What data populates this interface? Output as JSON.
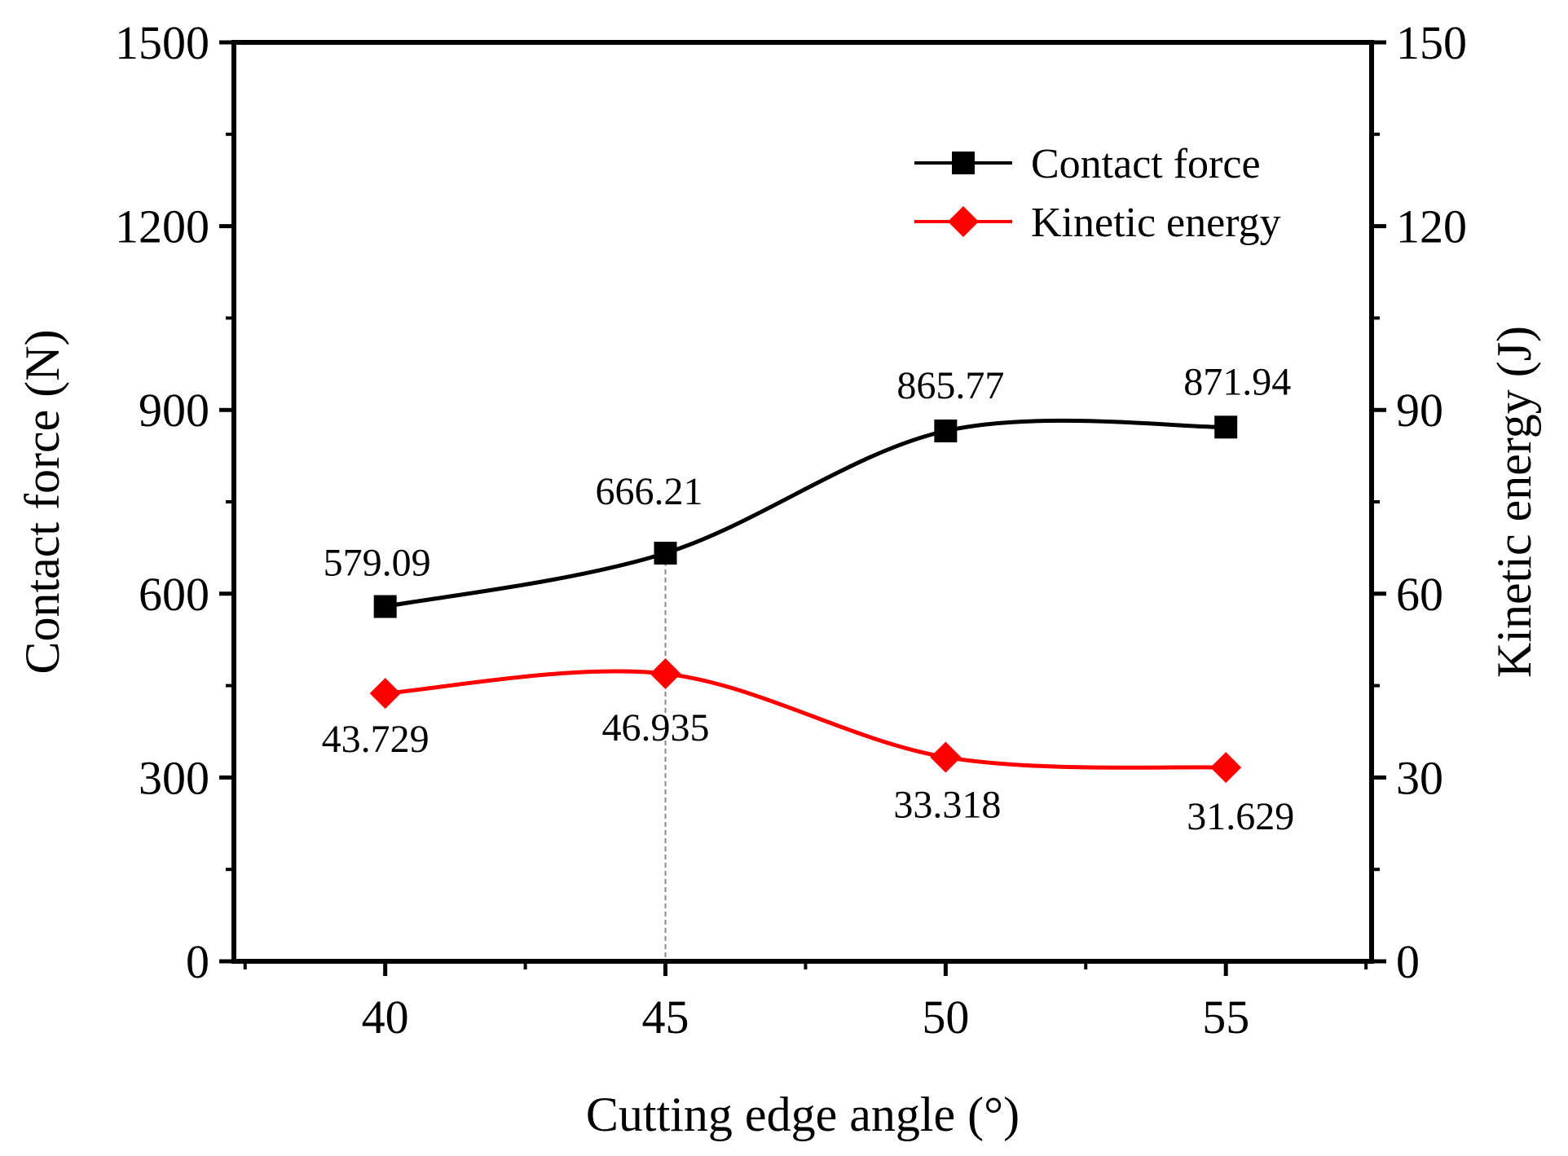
{
  "chart_data": {
    "type": "line",
    "title": "",
    "xlabel": "Cutting edge angle (°)",
    "ylabel_left": "Contact force (N)",
    "ylabel_right": "Kinetic energy (J)",
    "x": [
      40,
      45,
      50,
      55
    ],
    "x_ticks": [
      "40",
      "45",
      "50",
      "55"
    ],
    "xlim": [
      37.3,
      57.6
    ],
    "ylim_left": [
      0,
      1500
    ],
    "ylim_right": [
      0,
      150
    ],
    "y_ticks_left": [
      "0",
      "300",
      "600",
      "900",
      "1200",
      "1500"
    ],
    "y_ticks_right": [
      "0",
      "30",
      "60",
      "90",
      "120",
      "150"
    ],
    "series": [
      {
        "name": "Contact force",
        "axis": "left",
        "color": "#000000",
        "marker": "square",
        "values": [
          579.09,
          666.21,
          865.77,
          871.94
        ],
        "labels": [
          "579.09",
          "666.21",
          "865.77",
          "871.94"
        ]
      },
      {
        "name": "Kinetic energy",
        "axis": "right",
        "color": "#ff0000",
        "marker": "diamond",
        "values": [
          43.729,
          46.935,
          33.318,
          31.629
        ],
        "labels": [
          "43.729",
          "46.935",
          "33.318",
          "31.629"
        ]
      }
    ],
    "reference_line_x": 45,
    "legend_position": "top-right",
    "grid": false
  }
}
